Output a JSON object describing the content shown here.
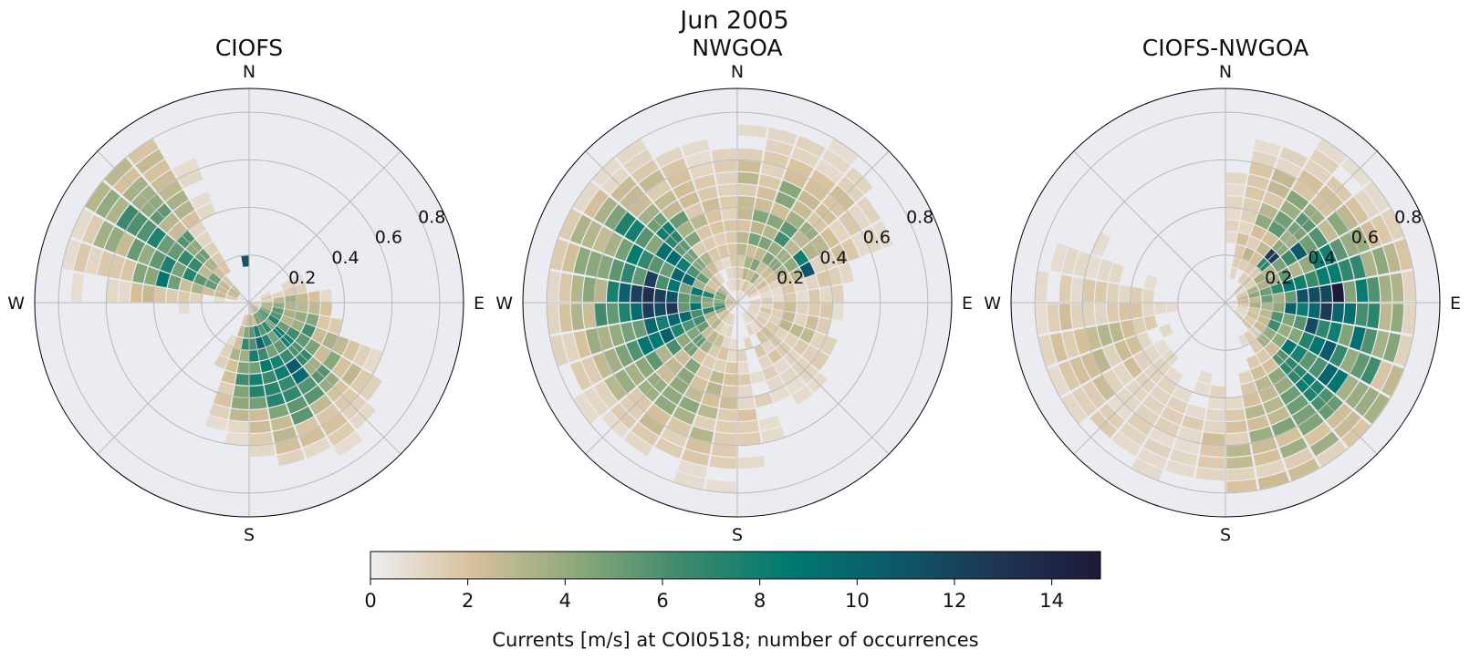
{
  "figure": {
    "title": "Jun 2005"
  },
  "colorbar": {
    "label": "Currents [m/s] at COI0518; number of occurrences",
    "min": 0,
    "max": 15,
    "ticks": [
      "0",
      "2",
      "4",
      "6",
      "8",
      "10",
      "12",
      "14"
    ],
    "tick_values": [
      0,
      2,
      4,
      6,
      8,
      10,
      12,
      14
    ],
    "colors": [
      "#efedf0",
      "#d6c09a",
      "#8aa87a",
      "#3d8a6c",
      "#007a6f",
      "#0c5a6c",
      "#1f3553",
      "#1c1a38"
    ]
  },
  "chart_data": [
    {
      "type": "polar-histogram",
      "title": "CIOFS",
      "directions": [
        "N",
        "E",
        "S",
        "W"
      ],
      "radial_ticks": [
        "0.2",
        "0.4",
        "0.6",
        "0.8"
      ],
      "radial_tick_values": [
        0.2,
        0.4,
        0.6,
        0.8
      ],
      "rlim": [
        0,
        0.9
      ],
      "theta_bin_deg": 10,
      "speed_bin": 0.05,
      "lobes": [
        {
          "dir": 300,
          "spread": 16,
          "r_center": 0.38,
          "r_spread": 0.22,
          "peak": 6.5
        },
        {
          "dir": 315,
          "spread": 12,
          "r_center": 0.65,
          "r_spread": 0.12,
          "peak": 2.5
        },
        {
          "dir": 150,
          "spread": 22,
          "r_center": 0.3,
          "r_spread": 0.2,
          "peak": 7.5
        },
        {
          "dir": 180,
          "spread": 14,
          "r_center": 0.25,
          "r_spread": 0.14,
          "peak": 3.5
        },
        {
          "dir": 110,
          "spread": 26,
          "r_center": 0.15,
          "r_spread": 0.12,
          "peak": 4
        }
      ],
      "hotspots": [
        {
          "dir": 352,
          "r": 0.175,
          "count": 11
        },
        {
          "dir": 290,
          "r": 0.375,
          "count": 9
        },
        {
          "dir": 155,
          "r": 0.325,
          "count": 8.5
        }
      ]
    },
    {
      "type": "polar-histogram",
      "title": "NWGOA",
      "directions": [
        "N",
        "E",
        "S",
        "W"
      ],
      "radial_ticks": [
        "0.2",
        "0.4",
        "0.6",
        "0.8"
      ],
      "radial_tick_values": [
        0.2,
        0.4,
        0.6,
        0.8
      ],
      "rlim": [
        0,
        0.9
      ],
      "theta_bin_deg": 10,
      "speed_bin": 0.05,
      "lobes": [
        {
          "dir": 265,
          "spread": 28,
          "r_center": 0.3,
          "r_spread": 0.22,
          "peak": 9
        },
        {
          "dir": 305,
          "spread": 20,
          "r_center": 0.45,
          "r_spread": 0.2,
          "peak": 4.5
        },
        {
          "dir": 30,
          "spread": 26,
          "r_center": 0.35,
          "r_spread": 0.22,
          "peak": 4.5
        },
        {
          "dir": 200,
          "spread": 22,
          "r_center": 0.45,
          "r_spread": 0.2,
          "peak": 2.5
        },
        {
          "dir": 120,
          "spread": 30,
          "r_center": 0.25,
          "r_spread": 0.15,
          "peak": 2.2
        }
      ],
      "hotspots": [
        {
          "dir": 268,
          "r": 0.325,
          "count": 15
        },
        {
          "dir": 258,
          "r": 0.275,
          "count": 13
        },
        {
          "dir": 245,
          "r": 0.3,
          "count": 12
        },
        {
          "dir": 60,
          "r": 0.325,
          "count": 8.5
        }
      ]
    },
    {
      "type": "polar-histogram",
      "title": "CIOFS-NWGOA",
      "directions": [
        "N",
        "E",
        "S",
        "W"
      ],
      "radial_ticks": [
        "0.2",
        "0.4",
        "0.6",
        "0.8"
      ],
      "radial_tick_values": [
        0.2,
        0.4,
        0.6,
        0.8
      ],
      "rlim": [
        0,
        0.9
      ],
      "theta_bin_deg": 10,
      "speed_bin": 0.05,
      "lobes": [
        {
          "dir": 85,
          "spread": 20,
          "r_center": 0.4,
          "r_spread": 0.2,
          "peak": 8
        },
        {
          "dir": 120,
          "spread": 18,
          "r_center": 0.45,
          "r_spread": 0.2,
          "peak": 6
        },
        {
          "dir": 160,
          "spread": 26,
          "r_center": 0.6,
          "r_spread": 0.2,
          "peak": 2.5
        },
        {
          "dir": 250,
          "spread": 28,
          "r_center": 0.55,
          "r_spread": 0.22,
          "peak": 2.2
        },
        {
          "dir": 35,
          "spread": 20,
          "r_center": 0.4,
          "r_spread": 0.2,
          "peak": 3.5
        }
      ],
      "hotspots": [
        {
          "dir": 85,
          "r": 0.475,
          "count": 14
        },
        {
          "dir": 55,
          "r": 0.35,
          "count": 9
        },
        {
          "dir": 45,
          "r": 0.25,
          "count": 10
        }
      ]
    }
  ]
}
